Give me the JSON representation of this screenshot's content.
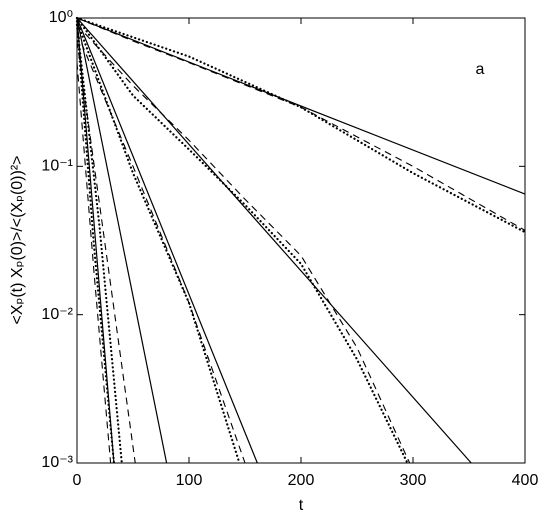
{
  "chart_data": {
    "type": "line",
    "xlabel": "t",
    "ylabel": "<Xₚ(t) Xₚ(0)>/<(Xₚ(0))²>",
    "annotation": "a",
    "log_y": true,
    "xlim": [
      0,
      400
    ],
    "ylim": [
      0.001,
      1
    ],
    "xticks": [
      0,
      100,
      200,
      300,
      400
    ],
    "yticks": [
      {
        "value": 0.001,
        "label": "10⁻³"
      },
      {
        "value": 0.01,
        "label": "10⁻²"
      },
      {
        "value": 0.1,
        "label": "10⁻¹"
      },
      {
        "value": 1,
        "label": "10⁰"
      }
    ],
    "series": [
      {
        "style": "solid",
        "color": "#000000",
        "x": [
          0,
          400
        ],
        "values": [
          1,
          0.065
        ]
      },
      {
        "style": "solid",
        "color": "#000000",
        "x": [
          0,
          352
        ],
        "values": [
          1,
          0.001
        ]
      },
      {
        "style": "solid",
        "color": "#000000",
        "x": [
          0,
          161
        ],
        "values": [
          1,
          0.001
        ]
      },
      {
        "style": "solid",
        "color": "#000000",
        "x": [
          0,
          80
        ],
        "values": [
          1,
          0.001
        ]
      },
      {
        "style": "solid",
        "color": "#000000",
        "x": [
          0,
          33
        ],
        "values": [
          1,
          0.001
        ]
      },
      {
        "style": "dashed",
        "color": "#000000",
        "x": [
          0,
          50,
          100,
          200,
          300,
          400
        ],
        "values": [
          1,
          0.7,
          0.5,
          0.25,
          0.1,
          0.037
        ]
      },
      {
        "style": "dashed",
        "color": "#000000",
        "x": [
          0,
          50,
          100,
          150,
          200,
          250,
          297
        ],
        "values": [
          0.9,
          0.35,
          0.15,
          0.06,
          0.025,
          0.006,
          0.001
        ]
      },
      {
        "style": "dashed",
        "color": "#000000",
        "x": [
          0,
          50,
          100,
          150
        ],
        "values": [
          0.8,
          0.1,
          0.012,
          0.001
        ]
      },
      {
        "style": "dashed",
        "color": "#000000",
        "x": [
          0,
          25,
          52
        ],
        "values": [
          0.7,
          0.03,
          0.001
        ]
      },
      {
        "style": "dashed",
        "color": "#000000",
        "x": [
          0,
          15,
          30
        ],
        "values": [
          0.5,
          0.02,
          0.001
        ]
      },
      {
        "style": "dotted",
        "color": "#000000",
        "x": [
          0,
          100,
          200,
          300,
          400
        ],
        "values": [
          1,
          0.55,
          0.25,
          0.09,
          0.036
        ]
      },
      {
        "style": "dotted",
        "color": "#000000",
        "x": [
          0,
          50,
          100,
          150,
          200,
          250,
          295
        ],
        "values": [
          1,
          0.3,
          0.13,
          0.055,
          0.022,
          0.005,
          0.001
        ]
      },
      {
        "style": "dotted",
        "color": "#000000",
        "x": [
          0,
          50,
          100,
          145
        ],
        "values": [
          0.95,
          0.09,
          0.012,
          0.001
        ]
      },
      {
        "style": "dotted",
        "color": "#000000",
        "x": [
          0,
          20,
          40
        ],
        "values": [
          0.9,
          0.04,
          0.001
        ]
      },
      {
        "style": "dotted",
        "color": "#000000",
        "x": [
          0,
          15,
          33
        ],
        "values": [
          0.9,
          0.03,
          0.001
        ]
      }
    ]
  }
}
